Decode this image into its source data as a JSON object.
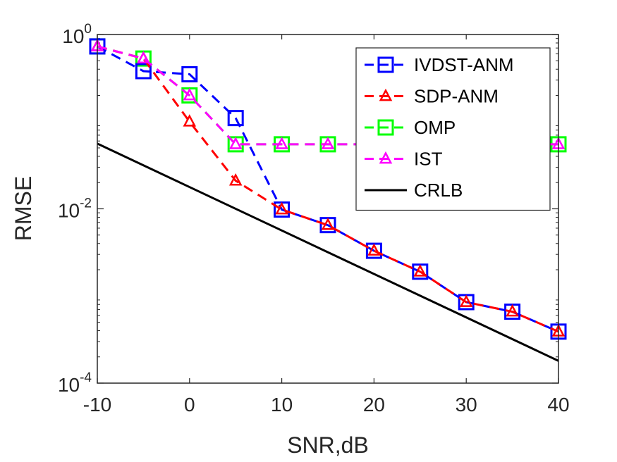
{
  "chart_data": {
    "type": "line",
    "xlabel": "SNR,dB",
    "ylabel": "RMSE",
    "xlim": [
      -10,
      40
    ],
    "ylim": [
      0.0001,
      1
    ],
    "yscale": "log",
    "xticks": [
      -10,
      0,
      10,
      20,
      30,
      40
    ],
    "xtick_labels": [
      "-10",
      "0",
      "10",
      "20",
      "30",
      "40"
    ],
    "yticks": [
      {
        "value": 1,
        "base": "10",
        "exp": "0"
      },
      {
        "value": 0.01,
        "base": "10",
        "exp": "-2"
      },
      {
        "value": 0.0001,
        "base": "10",
        "exp": "-4"
      }
    ],
    "legend_position": "top-right",
    "series": [
      {
        "name": "IVDST-ANM",
        "color": "#0000ff",
        "marker": "square",
        "dash": "dashed",
        "x": [
          -10,
          -5,
          0,
          5,
          10,
          15,
          20,
          25,
          30,
          35,
          40
        ],
        "y": [
          0.73,
          0.38,
          0.35,
          0.11,
          0.0098,
          0.0065,
          0.0033,
          0.0019,
          0.00085,
          0.00066,
          0.00039
        ]
      },
      {
        "name": "SDP-ANM",
        "color": "#ff0000",
        "marker": "triangle",
        "dash": "dashed",
        "x": [
          -10,
          -5,
          0,
          5,
          10,
          15,
          20,
          25,
          30,
          35,
          40
        ],
        "y": [
          0.73,
          0.53,
          0.1,
          0.021,
          0.0098,
          0.0065,
          0.0033,
          0.0019,
          0.00085,
          0.00066,
          0.00039
        ]
      },
      {
        "name": "OMP",
        "color": "#00ff00",
        "marker": "square",
        "dash": "dashed",
        "x": [
          -10,
          -5,
          0,
          5,
          10,
          15,
          40
        ],
        "y": [
          0.73,
          0.53,
          0.2,
          0.055,
          0.055,
          0.055,
          0.055
        ]
      },
      {
        "name": "IST",
        "color": "#ff00ff",
        "marker": "triangle",
        "dash": "dashed",
        "x": [
          -10,
          -5,
          0,
          5,
          10,
          15,
          40
        ],
        "y": [
          0.73,
          0.53,
          0.2,
          0.055,
          0.055,
          0.055,
          0.055
        ]
      },
      {
        "name": "CRLB",
        "color": "#000000",
        "marker": "none",
        "dash": "solid",
        "x": [
          -10,
          40
        ],
        "y": [
          0.056,
          0.00018
        ]
      }
    ]
  }
}
